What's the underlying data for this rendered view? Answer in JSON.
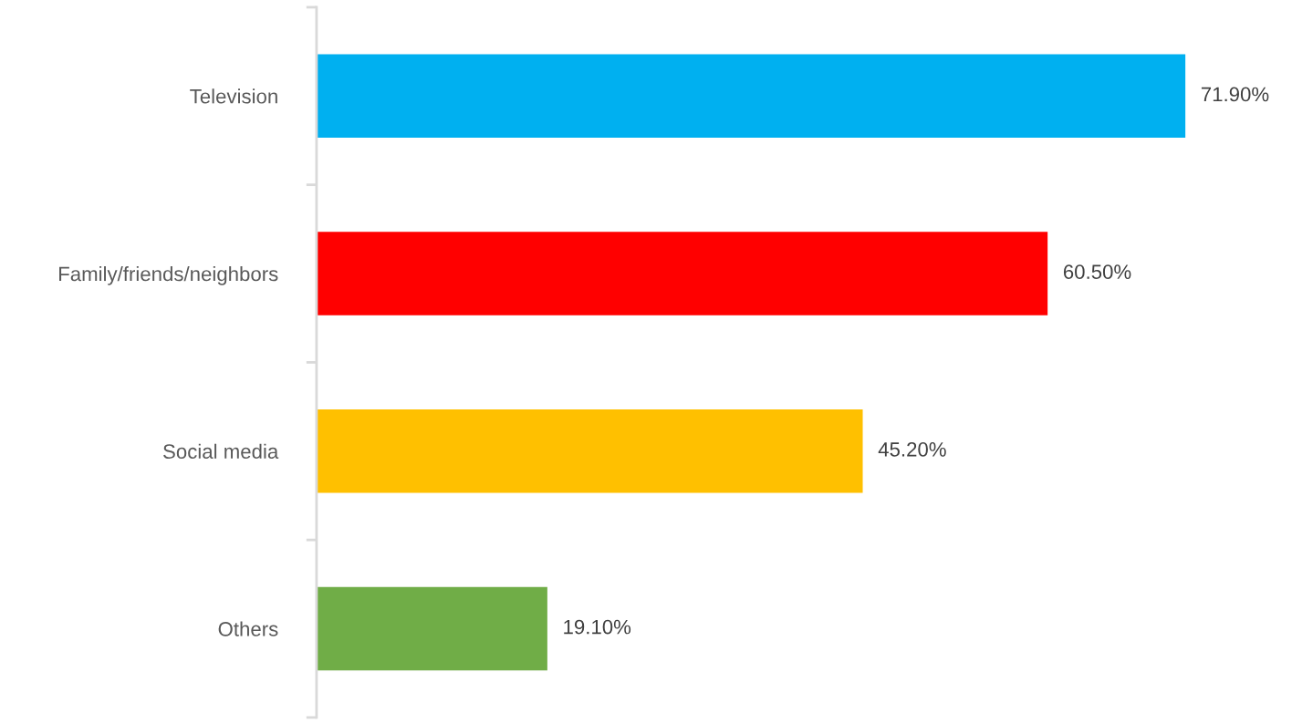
{
  "chart_data": {
    "type": "bar",
    "orientation": "horizontal",
    "categories": [
      "Television",
      "Family/friends/neighbors",
      "Social media",
      "Others"
    ],
    "values": [
      71.9,
      60.5,
      45.2,
      19.1
    ],
    "colors": [
      "#00b0f0",
      "#ff0000",
      "#ffc000",
      "#70ad47"
    ],
    "value_labels": [
      "71.90%",
      "60.50%",
      "45.20%",
      "19.10%"
    ],
    "grid": false,
    "legend": false
  }
}
